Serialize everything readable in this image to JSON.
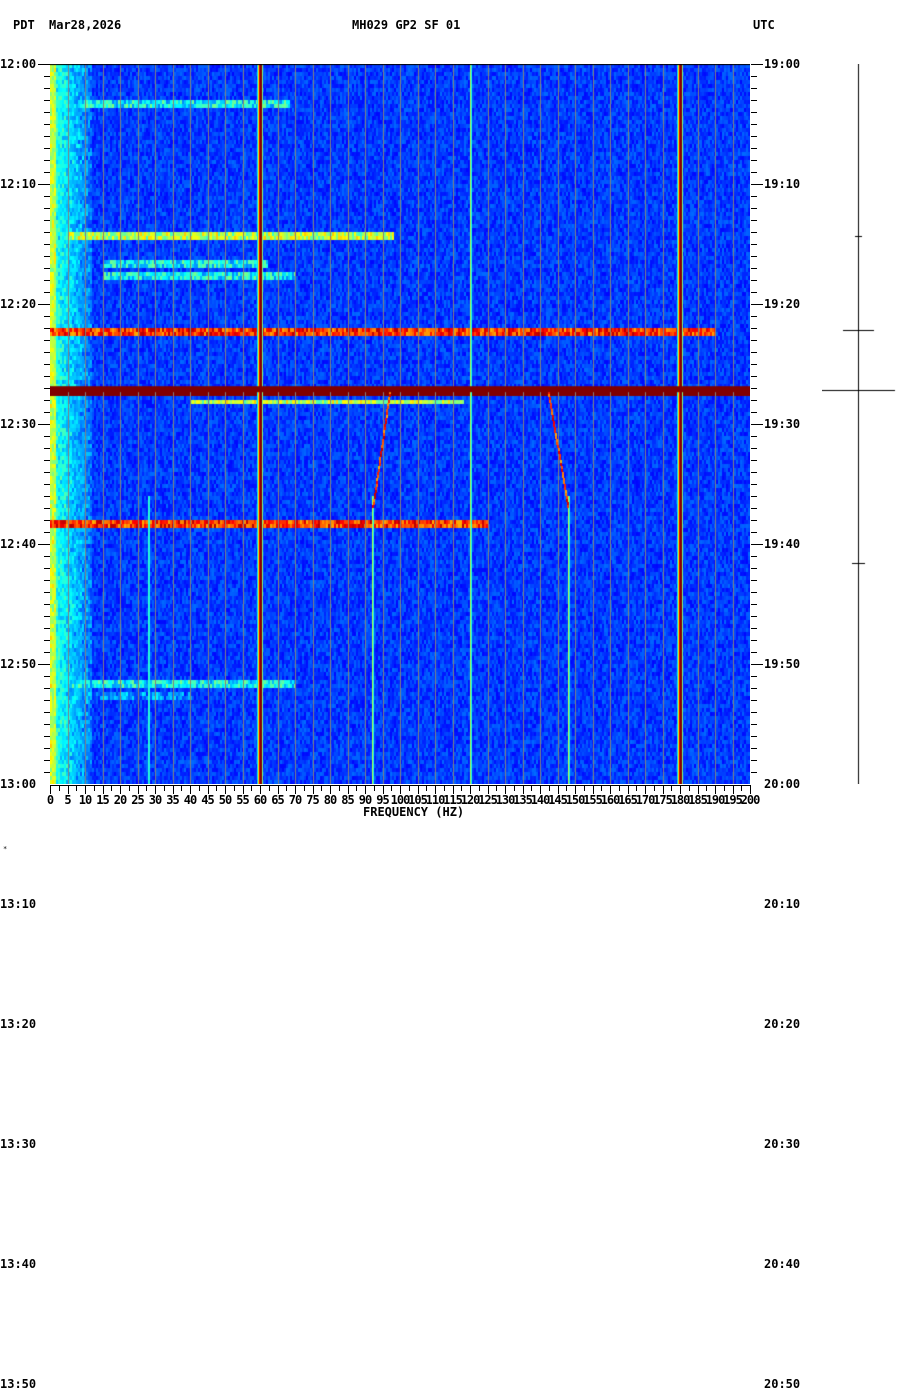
{
  "header": {
    "left_tz": "PDT",
    "date": "Mar28,2026",
    "station": "MH029 GP2 SF 01",
    "right_tz": "UTC"
  },
  "footer_mark": "*",
  "chart_data": {
    "type": "heatmap",
    "title": "MH029 GP2 SF 01",
    "subtitle": "Mar28,2026",
    "xlabel": "FREQUENCY (HZ)",
    "ylabel_left": "PDT",
    "ylabel_right": "UTC",
    "xlim": [
      0,
      200
    ],
    "x_ticks": [
      0,
      5,
      10,
      15,
      20,
      25,
      30,
      35,
      40,
      45,
      50,
      55,
      60,
      65,
      70,
      75,
      80,
      85,
      90,
      95,
      100,
      105,
      110,
      115,
      120,
      125,
      130,
      135,
      140,
      145,
      150,
      155,
      160,
      165,
      170,
      175,
      180,
      185,
      190,
      195,
      200
    ],
    "y_ticks_left": [
      "12:00",
      "12:10",
      "12:20",
      "12:30",
      "12:40",
      "12:50",
      "13:00",
      "13:10",
      "13:20",
      "13:30",
      "13:40",
      "13:50"
    ],
    "y_ticks_right": [
      "19:00",
      "19:10",
      "19:20",
      "19:30",
      "19:40",
      "19:50",
      "20:00",
      "20:10",
      "20:20",
      "20:30",
      "20:40",
      "20:50"
    ],
    "time_range_minutes": 60,
    "colormap": [
      "#00008f",
      "#0000ff",
      "#0080ff",
      "#00ffff",
      "#80ff80",
      "#ffff00",
      "#ff8000",
      "#ff0000",
      "#800000"
    ],
    "grid": {
      "vertical_every_hz": 5,
      "color": "#808080"
    },
    "persistent_lines_hz": [
      {
        "hz": 60,
        "intensity": "max"
      },
      {
        "hz": 180,
        "intensity": "max"
      },
      {
        "hz": 120,
        "intensity": "medium",
        "from_min": 0,
        "to_min": 60
      },
      {
        "hz": 28,
        "intensity": "low",
        "from_min": 36,
        "to_min": 60
      },
      {
        "hz": 92,
        "intensity": "medium",
        "from_min": 36,
        "to_min": 60
      },
      {
        "hz": 148,
        "intensity": "medium",
        "from_min": 36,
        "to_min": 60
      }
    ],
    "horizontal_events": [
      {
        "minute": 3.1,
        "from_hz": 8,
        "to_hz": 68,
        "intensity": "medium"
      },
      {
        "minute": 14.2,
        "from_hz": 5,
        "to_hz": 98,
        "intensity": "high"
      },
      {
        "minute": 16.6,
        "from_hz": 15,
        "to_hz": 62,
        "intensity": "medium"
      },
      {
        "minute": 17.6,
        "from_hz": 15,
        "to_hz": 70,
        "intensity": "medium"
      },
      {
        "minute": 22.1,
        "from_hz": 0,
        "to_hz": 190,
        "intensity": "saturated"
      },
      {
        "minute": 27.1,
        "from_hz": 0,
        "to_hz": 200,
        "intensity": "saturated_full"
      },
      {
        "minute": 28.0,
        "from_hz": 40,
        "to_hz": 118,
        "intensity": "high"
      },
      {
        "minute": 38.1,
        "from_hz": 0,
        "to_hz": 125,
        "intensity": "saturated"
      },
      {
        "minute": 51.5,
        "from_hz": 5,
        "to_hz": 70,
        "intensity": "medium"
      },
      {
        "minute": 52.5,
        "from_hz": 10,
        "to_hz": 40,
        "intensity": "low"
      }
    ],
    "drifting_tones": [
      {
        "from_min": 27,
        "to_min": 37,
        "from_hz": 97,
        "to_hz": 92
      },
      {
        "from_min": 27,
        "to_min": 37,
        "from_hz": 142,
        "to_hz": 148
      }
    ]
  },
  "seismogram": {
    "marks": [
      {
        "minute": 14.3,
        "half_width": 3
      },
      {
        "minute": 22.2,
        "half_width": 15
      },
      {
        "minute": 27.2,
        "half_width": 36
      },
      {
        "minute": 41.6,
        "half_width": 6
      }
    ]
  }
}
